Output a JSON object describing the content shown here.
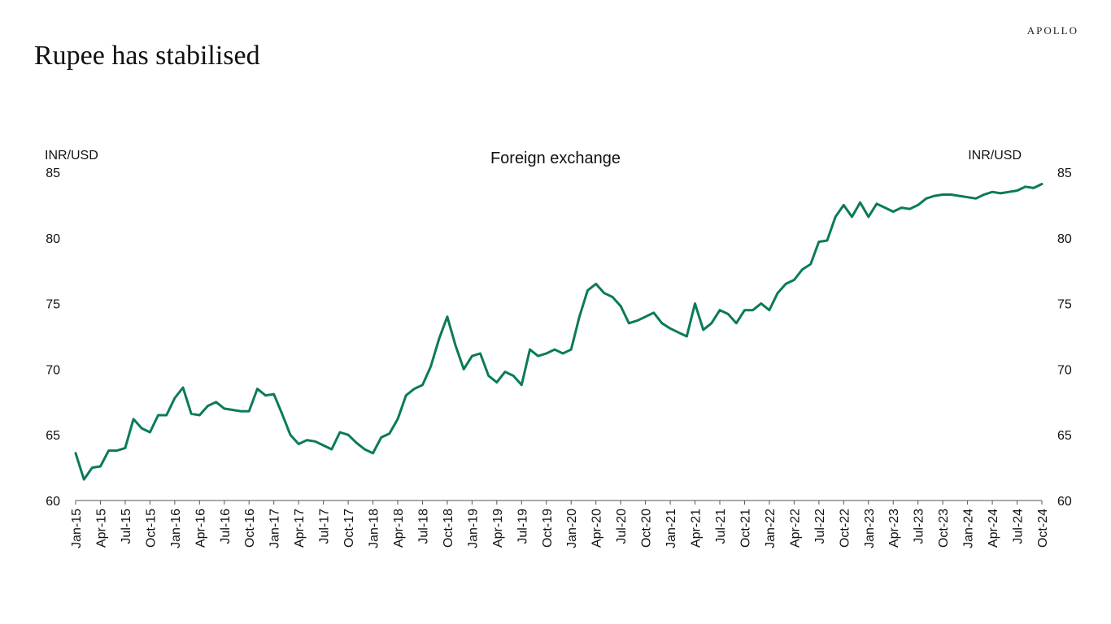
{
  "header": {
    "brand": "APOLLO",
    "title": "Rupee has stabilised"
  },
  "colors": {
    "series": "#0b7a5b",
    "axis": "#555555",
    "text": "#111111"
  },
  "chart_data": {
    "type": "line",
    "title": "Foreign exchange",
    "ylabel_left": "INR/USD",
    "ylabel_right": "INR/USD",
    "ylim": [
      60,
      85
    ],
    "yticks": [
      60,
      65,
      70,
      75,
      80,
      85
    ],
    "grid": false,
    "xticks": [
      "Jan-15",
      "Apr-15",
      "Jul-15",
      "Oct-15",
      "Jan-16",
      "Apr-16",
      "Jul-16",
      "Oct-16",
      "Jan-17",
      "Apr-17",
      "Jul-17",
      "Oct-17",
      "Jan-18",
      "Apr-18",
      "Jul-18",
      "Oct-18",
      "Jan-19",
      "Apr-19",
      "Jul-19",
      "Oct-19",
      "Jan-20",
      "Apr-20",
      "Jul-20",
      "Oct-20",
      "Jan-21",
      "Apr-21",
      "Jul-21",
      "Oct-21",
      "Jan-22",
      "Apr-22",
      "Jul-22",
      "Oct-22",
      "Jan-23",
      "Apr-23",
      "Jul-23",
      "Oct-23",
      "Jan-24",
      "Apr-24",
      "Jul-24",
      "Oct-24"
    ],
    "series": [
      {
        "name": "INR/USD",
        "x": [
          "Jan-15",
          "Feb-15",
          "Mar-15",
          "Apr-15",
          "May-15",
          "Jun-15",
          "Jul-15",
          "Aug-15",
          "Sep-15",
          "Oct-15",
          "Nov-15",
          "Dec-15",
          "Jan-16",
          "Feb-16",
          "Mar-16",
          "Apr-16",
          "May-16",
          "Jun-16",
          "Jul-16",
          "Aug-16",
          "Sep-16",
          "Oct-16",
          "Nov-16",
          "Dec-16",
          "Jan-17",
          "Feb-17",
          "Mar-17",
          "Apr-17",
          "May-17",
          "Jun-17",
          "Jul-17",
          "Aug-17",
          "Sep-17",
          "Oct-17",
          "Nov-17",
          "Dec-17",
          "Jan-18",
          "Feb-18",
          "Mar-18",
          "Apr-18",
          "May-18",
          "Jun-18",
          "Jul-18",
          "Aug-18",
          "Sep-18",
          "Oct-18",
          "Nov-18",
          "Dec-18",
          "Jan-19",
          "Feb-19",
          "Mar-19",
          "Apr-19",
          "May-19",
          "Jun-19",
          "Jul-19",
          "Aug-19",
          "Sep-19",
          "Oct-19",
          "Nov-19",
          "Dec-19",
          "Jan-20",
          "Feb-20",
          "Mar-20",
          "Apr-20",
          "May-20",
          "Jun-20",
          "Jul-20",
          "Aug-20",
          "Sep-20",
          "Oct-20",
          "Nov-20",
          "Dec-20",
          "Jan-21",
          "Feb-21",
          "Mar-21",
          "Apr-21",
          "May-21",
          "Jun-21",
          "Jul-21",
          "Aug-21",
          "Sep-21",
          "Oct-21",
          "Nov-21",
          "Dec-21",
          "Jan-22",
          "Feb-22",
          "Mar-22",
          "Apr-22",
          "May-22",
          "Jun-22",
          "Jul-22",
          "Aug-22",
          "Sep-22",
          "Oct-22",
          "Nov-22",
          "Dec-22",
          "Jan-23",
          "Feb-23",
          "Mar-23",
          "Apr-23",
          "May-23",
          "Jun-23",
          "Jul-23",
          "Aug-23",
          "Sep-23",
          "Oct-23",
          "Nov-23",
          "Dec-23",
          "Jan-24",
          "Feb-24",
          "Mar-24",
          "Apr-24",
          "May-24",
          "Jun-24",
          "Jul-24",
          "Aug-24",
          "Sep-24",
          "Oct-24"
        ],
        "values": [
          63.6,
          61.6,
          62.5,
          62.6,
          63.8,
          63.8,
          64.0,
          66.2,
          65.5,
          65.2,
          66.5,
          66.5,
          67.8,
          68.6,
          66.6,
          66.5,
          67.2,
          67.5,
          67.0,
          66.9,
          66.8,
          66.8,
          68.5,
          68.0,
          68.1,
          66.6,
          65.0,
          64.3,
          64.6,
          64.5,
          64.2,
          63.9,
          65.2,
          65.0,
          64.4,
          63.9,
          63.6,
          64.8,
          65.1,
          66.2,
          68.0,
          68.5,
          68.8,
          70.2,
          72.3,
          74.0,
          71.8,
          70.0,
          71.0,
          71.2,
          69.5,
          69.0,
          69.8,
          69.5,
          68.8,
          71.5,
          71.0,
          71.2,
          71.5,
          71.2,
          71.5,
          74.0,
          76.0,
          76.5,
          75.8,
          75.5,
          74.8,
          73.5,
          73.7,
          74.0,
          74.3,
          73.5,
          73.1,
          72.8,
          72.5,
          75.0,
          73.0,
          73.5,
          74.5,
          74.2,
          73.5,
          74.5,
          74.5,
          75.0,
          74.5,
          75.8,
          76.5,
          76.8,
          77.6,
          78.0,
          79.7,
          79.8,
          81.6,
          82.5,
          81.6,
          82.7,
          81.6,
          82.6,
          82.3,
          82.0,
          82.3,
          82.2,
          82.5,
          83.0,
          83.2,
          83.3,
          83.3,
          83.2,
          83.1,
          83.0,
          83.3,
          83.5,
          83.4,
          83.5,
          83.6,
          83.9,
          83.8,
          84.1
        ]
      }
    ]
  }
}
